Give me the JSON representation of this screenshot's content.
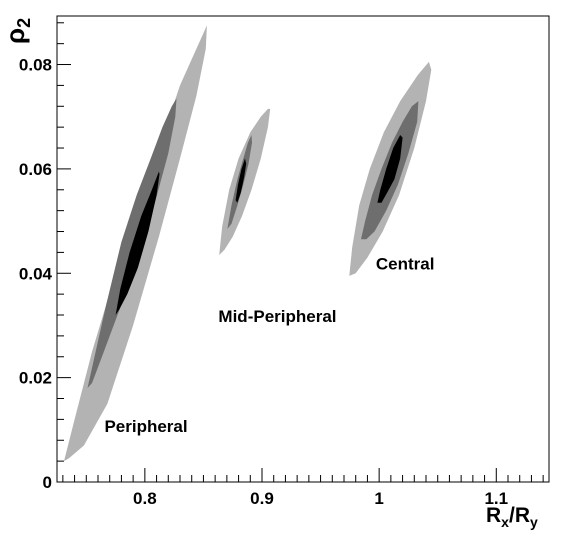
{
  "chart_data": {
    "type": "contour",
    "title": "",
    "xlabel": {
      "main": "R",
      "sub1": "x",
      "slash": "/",
      "main2": "R",
      "sub2": "y"
    },
    "ylabel": {
      "main": "ρ",
      "sub": "2"
    },
    "xlim": [
      0.725,
      1.145
    ],
    "ylim": [
      0,
      0.0893
    ],
    "x_ticks": [
      {
        "value": 0.8,
        "label": "0.8"
      },
      {
        "value": 0.9,
        "label": "0.9"
      },
      {
        "value": 1.0,
        "label": "1"
      },
      {
        "value": 1.1,
        "label": "1.1"
      }
    ],
    "y_ticks": [
      {
        "value": 0.0,
        "label": "0"
      },
      {
        "value": 0.02,
        "label": "0.02"
      },
      {
        "value": 0.04,
        "label": "0.04"
      },
      {
        "value": 0.06,
        "label": "0.06"
      },
      {
        "value": 0.08,
        "label": "0.08"
      }
    ],
    "level_colors": [
      "#b3b3b3",
      "#6e6e6e",
      "#000000"
    ],
    "regions": [
      {
        "name": "Peripheral",
        "label_at": [
          0.7655,
          0.0096
        ],
        "contours": [
          [
            [
              0.731,
              0.004
            ],
            [
              0.74,
              0.012
            ],
            [
              0.755,
              0.025
            ],
            [
              0.775,
              0.04
            ],
            [
              0.797,
              0.055
            ],
            [
              0.815,
              0.066
            ],
            [
              0.83,
              0.076
            ],
            [
              0.84,
              0.081
            ],
            [
              0.848,
              0.085
            ],
            [
              0.853,
              0.0875
            ],
            [
              0.852,
              0.083
            ],
            [
              0.844,
              0.074
            ],
            [
              0.83,
              0.062
            ],
            [
              0.812,
              0.047
            ],
            [
              0.79,
              0.03
            ],
            [
              0.768,
              0.015
            ],
            [
              0.748,
              0.007
            ],
            [
              0.735,
              0.0045
            ]
          ],
          [
            [
              0.751,
              0.018
            ],
            [
              0.757,
              0.024
            ],
            [
              0.767,
              0.034
            ],
            [
              0.78,
              0.046
            ],
            [
              0.793,
              0.055
            ],
            [
              0.805,
              0.062
            ],
            [
              0.815,
              0.068
            ],
            [
              0.823,
              0.072
            ],
            [
              0.827,
              0.0735
            ],
            [
              0.826,
              0.07
            ],
            [
              0.82,
              0.063
            ],
            [
              0.808,
              0.053
            ],
            [
              0.795,
              0.044
            ],
            [
              0.78,
              0.034
            ],
            [
              0.765,
              0.025
            ],
            [
              0.755,
              0.019
            ]
          ],
          [
            [
              0.775,
              0.032
            ],
            [
              0.779,
              0.037
            ],
            [
              0.787,
              0.044
            ],
            [
              0.797,
              0.051
            ],
            [
              0.806,
              0.056
            ],
            [
              0.812,
              0.0595
            ],
            [
              0.8125,
              0.059
            ],
            [
              0.81,
              0.055
            ],
            [
              0.803,
              0.048
            ],
            [
              0.794,
              0.041
            ],
            [
              0.785,
              0.036
            ],
            [
              0.778,
              0.033
            ]
          ]
        ]
      },
      {
        "name": "Mid-Peripheral",
        "label_at": [
          0.8628,
          0.0307
        ],
        "contours": [
          [
            [
              0.8635,
              0.0435
            ],
            [
              0.866,
              0.049
            ],
            [
              0.872,
              0.056
            ],
            [
              0.88,
              0.062
            ],
            [
              0.89,
              0.067
            ],
            [
              0.899,
              0.07
            ],
            [
              0.905,
              0.0715
            ],
            [
              0.907,
              0.0715
            ],
            [
              0.905,
              0.068
            ],
            [
              0.899,
              0.062
            ],
            [
              0.891,
              0.056
            ],
            [
              0.883,
              0.051
            ],
            [
              0.875,
              0.047
            ],
            [
              0.868,
              0.0445
            ]
          ],
          [
            [
              0.8705,
              0.0485
            ],
            [
              0.874,
              0.053
            ],
            [
              0.879,
              0.058
            ],
            [
              0.884,
              0.062
            ],
            [
              0.888,
              0.065
            ],
            [
              0.891,
              0.0665
            ],
            [
              0.8915,
              0.065
            ],
            [
              0.8885,
              0.061
            ],
            [
              0.884,
              0.057
            ],
            [
              0.879,
              0.053
            ],
            [
              0.874,
              0.0495
            ]
          ],
          [
            [
              0.8775,
              0.054
            ],
            [
              0.8795,
              0.057
            ],
            [
              0.8825,
              0.06
            ],
            [
              0.8855,
              0.062
            ],
            [
              0.8865,
              0.061
            ],
            [
              0.8848,
              0.0585
            ],
            [
              0.882,
              0.0555
            ],
            [
              0.879,
              0.0535
            ]
          ]
        ]
      },
      {
        "name": "Central",
        "label_at": [
          0.9972,
          0.0407
        ],
        "contours": [
          [
            [
              0.9745,
              0.0395
            ],
            [
              0.977,
              0.045
            ],
            [
              0.983,
              0.053
            ],
            [
              0.992,
              0.06
            ],
            [
              1.004,
              0.067
            ],
            [
              1.018,
              0.073
            ],
            [
              1.033,
              0.078
            ],
            [
              1.0425,
              0.0805
            ],
            [
              1.0445,
              0.079
            ],
            [
              1.04,
              0.073
            ],
            [
              1.03,
              0.064
            ],
            [
              1.017,
              0.055
            ],
            [
              1.003,
              0.048
            ],
            [
              0.99,
              0.043
            ],
            [
              0.98,
              0.04
            ]
          ],
          [
            [
              0.9845,
              0.0465
            ],
            [
              0.988,
              0.05
            ],
            [
              0.994,
              0.055
            ],
            [
              1.002,
              0.06
            ],
            [
              1.011,
              0.065
            ],
            [
              1.02,
              0.069
            ],
            [
              1.028,
              0.072
            ],
            [
              1.0335,
              0.073
            ],
            [
              1.0325,
              0.069
            ],
            [
              1.025,
              0.063
            ],
            [
              1.016,
              0.057
            ],
            [
              1.006,
              0.052
            ],
            [
              0.996,
              0.048
            ],
            [
              0.989,
              0.0465
            ]
          ],
          [
            [
              0.9985,
              0.0535
            ],
            [
              1.001,
              0.056
            ],
            [
              1.006,
              0.06
            ],
            [
              1.012,
              0.064
            ],
            [
              1.018,
              0.0665
            ],
            [
              1.02,
              0.066
            ],
            [
              1.018,
              0.062
            ],
            [
              1.013,
              0.058
            ],
            [
              1.007,
              0.0555
            ],
            [
              1.002,
              0.0535
            ]
          ]
        ]
      }
    ]
  }
}
